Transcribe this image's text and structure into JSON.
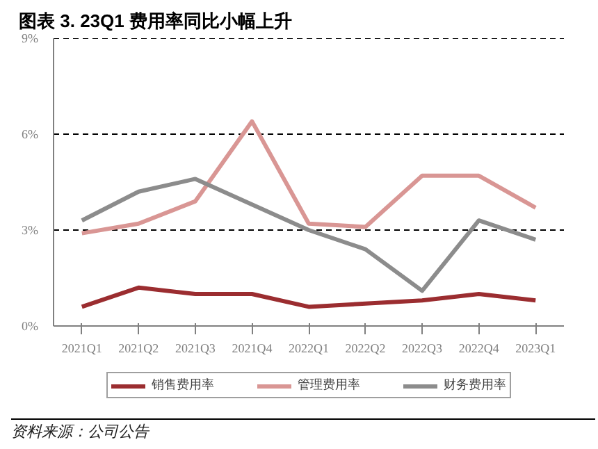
{
  "chart_data": {
    "type": "line",
    "title": "图表 3. 23Q1 费用率同比小幅上升",
    "categories": [
      "2021Q1",
      "2021Q2",
      "2021Q3",
      "2021Q4",
      "2022Q1",
      "2022Q2",
      "2022Q3",
      "2022Q4",
      "2023Q1"
    ],
    "series": [
      {
        "name": "销售费用率",
        "color": "#9b2d30",
        "values": [
          0.6,
          1.2,
          1.0,
          1.0,
          0.6,
          0.7,
          0.8,
          1.0,
          0.8
        ]
      },
      {
        "name": "管理费用率",
        "color": "#d99694",
        "values": [
          2.9,
          3.2,
          3.9,
          6.4,
          3.2,
          3.1,
          4.7,
          4.7,
          3.7
        ]
      },
      {
        "name": "财务费用率",
        "color": "#8c8c8c",
        "values": [
          3.3,
          4.2,
          4.6,
          3.8,
          3.0,
          2.4,
          1.1,
          3.3,
          2.7
        ]
      }
    ],
    "ylim": [
      0,
      9
    ],
    "yticks": [
      {
        "value": 0,
        "label": "0%"
      },
      {
        "value": 3,
        "label": "3%"
      },
      {
        "value": 6,
        "label": "6%"
      },
      {
        "value": 9,
        "label": "9%"
      }
    ],
    "grid": "y",
    "legend": "bottom",
    "marker": "none",
    "line_style": "solid",
    "annotations": [
      "资料来源：公司公告"
    ]
  }
}
